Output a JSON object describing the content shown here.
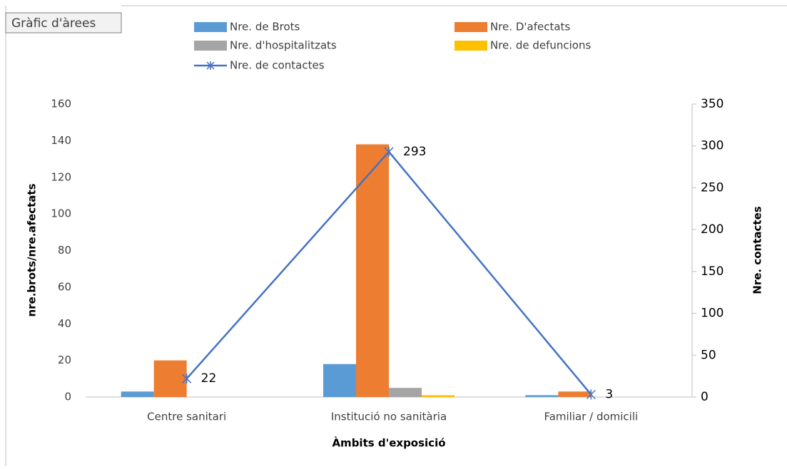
{
  "chart_data": {
    "type": "bar",
    "title": "Gràfic d'àrees",
    "x_label": "Àmbits d'exposició",
    "y_label": "nre.brots/nre.afectats",
    "y2_label": "Nre. contactes",
    "categories": [
      "Centre sanitari",
      "Institució no sanitària",
      "Familiar / domicili"
    ],
    "series": [
      {
        "name": "Nre. de Brots",
        "color": "#5b9bd5",
        "values": [
          3,
          18,
          1
        ]
      },
      {
        "name": "Nre. D'afectats",
        "color": "#ed7d31",
        "values": [
          20,
          138,
          3
        ]
      },
      {
        "name": "Nre. d'hospitalitzats",
        "color": "#a5a5a5",
        "values": [
          0,
          5,
          0
        ]
      },
      {
        "name": "Nre. de defuncions",
        "color": "#ffc000",
        "values": [
          0,
          1,
          0
        ]
      },
      {
        "name": "Nre. de contactes",
        "color": "#4472c4",
        "type": "line",
        "axis": "y2",
        "values": [
          22,
          293,
          3
        ]
      }
    ],
    "ylim": [
      0,
      160
    ],
    "yticks": [
      0,
      20,
      40,
      60,
      80,
      100,
      120,
      140,
      160
    ],
    "y2lim": [
      0,
      350
    ],
    "y2ticks": [
      0,
      50,
      100,
      150,
      200,
      250,
      300,
      350
    ],
    "grid": false
  }
}
